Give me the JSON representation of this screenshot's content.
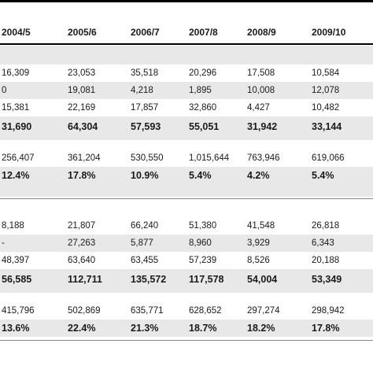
{
  "headers": [
    "2004/5",
    "2005/6",
    "2006/7",
    "2007/8",
    "2008/9",
    "2009/10"
  ],
  "rows": [
    {
      "cells": [
        "16,309",
        "23,053",
        "35,518",
        "20,296",
        "17,508",
        "10,584"
      ]
    },
    {
      "cells": [
        "0",
        "19,081",
        "4,218",
        "1,895",
        "10,008",
        "12,078"
      ]
    },
    {
      "cells": [
        "15,381",
        "22,169",
        "17,857",
        "32,860",
        "4,427",
        "10,482"
      ]
    },
    {
      "cells": [
        "31,690",
        "64,304",
        "57,593",
        "55,051",
        "31,942",
        "33,144"
      ]
    },
    {
      "cells": [
        "256,407",
        "361,204",
        "530,550",
        "1,015,644",
        "763,946",
        "619,066"
      ]
    },
    {
      "cells": [
        "12.4%",
        "17.8%",
        "10.9%",
        "5.4%",
        "4.2%",
        "5.4%"
      ]
    },
    {
      "cells": [
        "8,188",
        "21,807",
        "66,240",
        "51,380",
        "41,548",
        "26,818"
      ]
    },
    {
      "cells": [
        "-",
        "27,263",
        "5,877",
        "8,960",
        "3,929",
        "6,343"
      ]
    },
    {
      "cells": [
        "48,397",
        "63,640",
        "63,455",
        "57,239",
        "8,526",
        "20,188"
      ]
    },
    {
      "cells": [
        "56,585",
        "112,711",
        "135,572",
        "117,578",
        "54,004",
        "53,349"
      ]
    },
    {
      "cells": [
        "415,796",
        "502,869",
        "635,771",
        "628,652",
        "297,274",
        "298,942"
      ]
    },
    {
      "cells": [
        "13.6%",
        "22.4%",
        "21.3%",
        "18.7%",
        "18.2%",
        "17.8%"
      ]
    }
  ]
}
